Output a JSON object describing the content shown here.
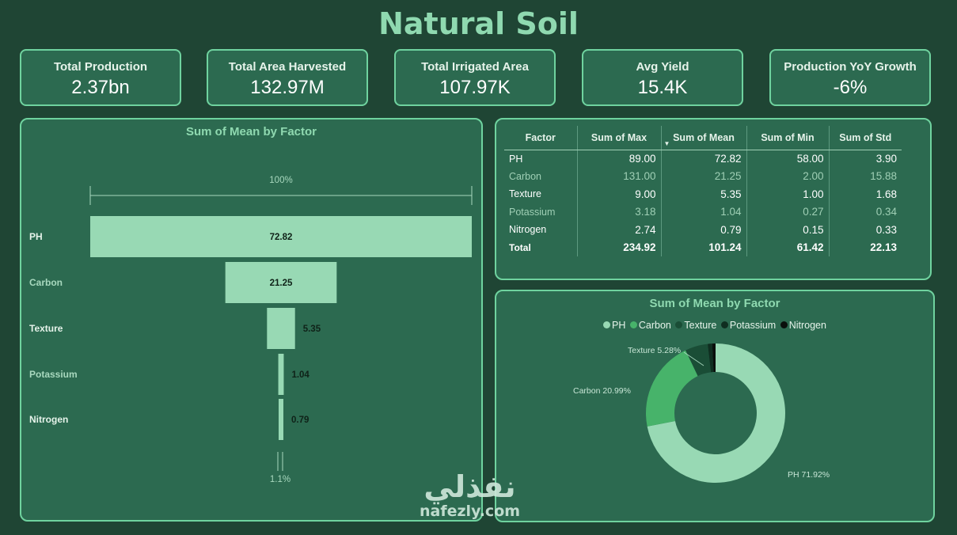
{
  "title": "Natural Soil",
  "kpis": [
    {
      "label": "Total Production",
      "value": "2.37bn"
    },
    {
      "label": "Total Area Harvested",
      "value": "132.97M"
    },
    {
      "label": "Total Irrigated Area",
      "value": "107.97K"
    },
    {
      "label": "Avg Yield",
      "value": "15.4K"
    },
    {
      "label": "Production YoY Growth",
      "value": "-6%"
    }
  ],
  "funnel": {
    "title": "Sum of Mean by Factor",
    "top_pct": "100%",
    "bottom_pct": "1.1%"
  },
  "table": {
    "headers": [
      "Factor",
      "Sum of Max",
      "Sum of Mean",
      "Sum of Min",
      "Sum of Std"
    ],
    "rows": [
      [
        "PH",
        "89.00",
        "72.82",
        "58.00",
        "3.90"
      ],
      [
        "Carbon",
        "131.00",
        "21.25",
        "2.00",
        "15.88"
      ],
      [
        "Texture",
        "9.00",
        "5.35",
        "1.00",
        "1.68"
      ],
      [
        "Potassium",
        "3.18",
        "1.04",
        "0.27",
        "0.34"
      ],
      [
        "Nitrogen",
        "2.74",
        "0.79",
        "0.15",
        "0.33"
      ]
    ],
    "total": [
      "Total",
      "234.92",
      "101.24",
      "61.42",
      "22.13"
    ]
  },
  "donut": {
    "title": "Sum of Mean by Factor",
    "labels": {
      "Texture": "Texture 5.28%",
      "Carbon": "Carbon 20.99%",
      "PH": "PH 71.92%"
    }
  },
  "colors": {
    "PH": "#98d9b4",
    "Carbon": "#47b36a",
    "Texture": "#1a4d36",
    "Potassium": "#0f2e20",
    "Nitrogen": "#0a0f0c"
  },
  "chart_data": [
    {
      "type": "bar",
      "subtype": "funnel",
      "title": "Sum of Mean by Factor",
      "categories": [
        "PH",
        "Carbon",
        "Texture",
        "Potassium",
        "Nitrogen"
      ],
      "values": [
        72.82,
        21.25,
        5.35,
        1.04,
        0.79
      ]
    },
    {
      "type": "pie",
      "subtype": "donut",
      "title": "Sum of Mean by Factor",
      "categories": [
        "PH",
        "Carbon",
        "Texture",
        "Potassium",
        "Nitrogen"
      ],
      "values": [
        72.82,
        21.25,
        5.35,
        1.04,
        0.79
      ],
      "legend": "top-center"
    }
  ],
  "watermark": {
    "arabic": "نفذلي",
    "latin": "nafezly.com"
  }
}
